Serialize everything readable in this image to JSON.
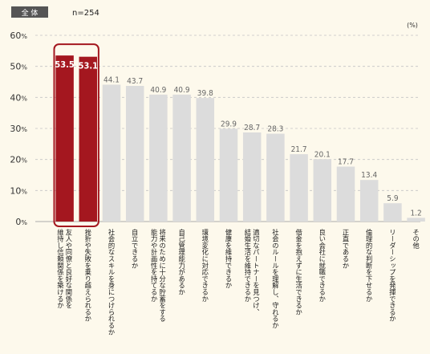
{
  "header": {
    "badge": "全 体",
    "n_label": "n=254",
    "unit": "(%)"
  },
  "chart_data": {
    "type": "bar",
    "ylim": [
      0,
      60
    ],
    "yticks": [
      0,
      10,
      20,
      30,
      40,
      50,
      60
    ],
    "tick_suffix": "%",
    "grid": true,
    "highlight_color": "#a4171f",
    "bar_color": "#dcdcdc",
    "categories": [
      [
        "友人や同僚と良好な関係を",
        "維持し信頼関係を築けるか"
      ],
      [
        "挫折や失敗を乗り越えられるか"
      ],
      [
        "社会的なスキルを身につけられるか"
      ],
      [
        "自立できるか"
      ],
      [
        "将来のために十分な貯蓄をする",
        "能力や計画性を持てるか"
      ],
      [
        "自己管理能力があるか"
      ],
      [
        "環境変化に対応できるか"
      ],
      [
        "健康を維持できるか"
      ],
      [
        "適切なパートナーを見つけ、",
        "結婚生活を維持できるか"
      ],
      [
        "社会のルールを理解し、守れるか"
      ],
      [
        "借金を抱えずに生活できるか"
      ],
      [
        "良い会社に就職できるか"
      ],
      [
        "正直であるか"
      ],
      [
        "倫理的な判断を下せるか"
      ],
      [
        "リーダーシップを発揮できるか"
      ],
      [
        "その他"
      ]
    ],
    "values": [
      53.5,
      53.1,
      44.1,
      43.7,
      40.9,
      40.9,
      39.8,
      29.9,
      28.7,
      28.3,
      21.7,
      20.1,
      17.7,
      13.4,
      5.9,
      1.2
    ],
    "value_labels": [
      "53.5",
      "53.1",
      "44.1",
      "43.7",
      "40.9",
      "40.9",
      "39.8",
      "29.9",
      "28.7",
      "28.3",
      "21.7",
      "20.1",
      "17.7",
      "13.4",
      "5.9",
      "1.2"
    ],
    "highlighted": [
      0,
      1
    ]
  }
}
